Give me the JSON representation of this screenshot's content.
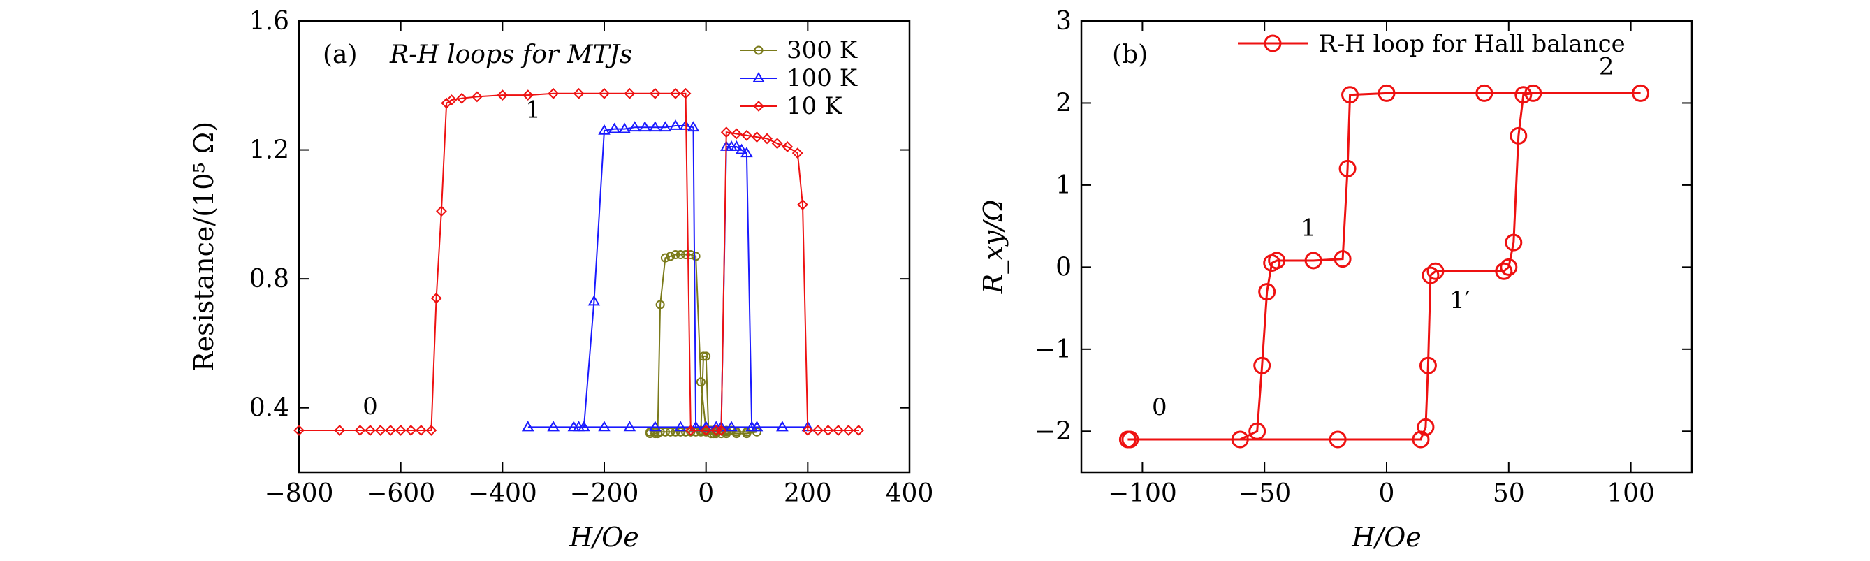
{
  "chart_data": [
    {
      "type": "line",
      "panel": "(a)",
      "title": "R-H loops for MTJs",
      "xlabel": "H/Oe",
      "ylabel": "Resistance/(10⁵ Ω)",
      "xlim": [
        -800,
        400
      ],
      "ylim": [
        0.2,
        1.6
      ],
      "xticks": [
        -800,
        -600,
        -400,
        -200,
        0,
        200,
        400
      ],
      "xtick_labels": [
        "−800",
        "−600",
        "−400",
        "−200",
        "0",
        "200",
        "400"
      ],
      "yticks": [
        0.4,
        0.8,
        1.2,
        1.6
      ],
      "ytick_labels": [
        "0.4",
        "0.8",
        "1.2",
        "1.6"
      ],
      "legend_position": "top-right",
      "annotations": [
        {
          "text": "0",
          "x": -660,
          "y": 0.38
        },
        {
          "text": "1",
          "x": -340,
          "y": 1.3
        }
      ],
      "series": [
        {
          "name": "300 K",
          "color": "#7a7a1a",
          "marker": "circle",
          "x": [
            -110,
            -100,
            -90,
            -80,
            -70,
            -60,
            -50,
            -40,
            -30,
            -20,
            -10,
            0,
            10,
            20,
            30,
            40,
            50,
            -10,
            -5,
            0,
            5,
            10,
            15,
            20,
            30,
            40,
            60,
            80,
            100,
            80,
            60,
            40,
            20,
            10,
            0,
            -10,
            -20,
            -30,
            -40,
            -50,
            -60,
            -70,
            -80,
            -90,
            -95,
            -100,
            -110
          ],
          "y": [
            0.325,
            0.325,
            0.325,
            0.325,
            0.325,
            0.325,
            0.325,
            0.325,
            0.325,
            0.325,
            0.325,
            0.325,
            0.33,
            0.33,
            0.33,
            0.33,
            0.33,
            0.33,
            0.56,
            0.56,
            0.33,
            0.32,
            0.32,
            0.32,
            0.32,
            0.32,
            0.32,
            0.32,
            0.325,
            0.325,
            0.325,
            0.325,
            0.325,
            0.33,
            0.33,
            0.48,
            0.87,
            0.875,
            0.875,
            0.875,
            0.875,
            0.87,
            0.865,
            0.72,
            0.32,
            0.32,
            0.32
          ]
        },
        {
          "name": "100 K",
          "color": "#1a1aff",
          "marker": "triangle",
          "x": [
            -350,
            -300,
            -250,
            -200,
            -150,
            -100,
            -50,
            0,
            50,
            100,
            150,
            200,
            150,
            100,
            90,
            80,
            70,
            60,
            50,
            40,
            30,
            20,
            0,
            -20,
            -25,
            -40,
            -60,
            -80,
            -100,
            -120,
            -140,
            -160,
            -180,
            -200,
            -220,
            -240,
            -260,
            -300,
            -350
          ],
          "y": [
            0.34,
            0.34,
            0.34,
            0.34,
            0.34,
            0.34,
            0.34,
            0.34,
            0.34,
            0.34,
            0.34,
            0.34,
            0.34,
            0.34,
            0.34,
            1.19,
            1.2,
            1.21,
            1.21,
            1.21,
            0.34,
            0.34,
            0.34,
            0.34,
            1.27,
            1.275,
            1.275,
            1.27,
            1.27,
            1.27,
            1.27,
            1.265,
            1.265,
            1.26,
            0.73,
            0.34,
            0.34,
            0.34,
            0.34
          ]
        },
        {
          "name": "10 K",
          "color": "#ee1111",
          "marker": "diamond",
          "x": [
            -800,
            -720,
            -680,
            -660,
            -640,
            -620,
            -600,
            -580,
            -560,
            -540,
            -530,
            -520,
            -510,
            -500,
            -480,
            -450,
            -400,
            -350,
            -300,
            -250,
            -200,
            -150,
            -100,
            -60,
            -40,
            -30,
            0,
            20,
            30,
            40,
            60,
            80,
            100,
            120,
            140,
            160,
            180,
            190,
            200,
            220,
            240,
            260,
            280,
            300
          ],
          "y": [
            0.33,
            0.33,
            0.33,
            0.33,
            0.33,
            0.33,
            0.33,
            0.33,
            0.33,
            0.33,
            0.74,
            1.01,
            1.345,
            1.355,
            1.36,
            1.365,
            1.37,
            1.37,
            1.375,
            1.375,
            1.375,
            1.375,
            1.375,
            1.375,
            1.375,
            0.33,
            0.33,
            0.33,
            0.33,
            1.255,
            1.25,
            1.245,
            1.24,
            1.235,
            1.22,
            1.21,
            1.19,
            1.03,
            0.33,
            0.33,
            0.33,
            0.33,
            0.33,
            0.33
          ]
        }
      ]
    },
    {
      "type": "line",
      "panel": "(b)",
      "title": "",
      "xlabel": "H/Oe",
      "ylabel": "R_xy/Ω",
      "xlim": [
        -125,
        125
      ],
      "ylim": [
        -2.5,
        3
      ],
      "xticks": [
        -100,
        -50,
        0,
        50,
        100
      ],
      "xtick_labels": [
        "−100",
        "−50",
        "0",
        "50",
        "100"
      ],
      "yticks": [
        -2,
        -1,
        0,
        1,
        2,
        3
      ],
      "ytick_labels": [
        "−2",
        "−1",
        "0",
        "1",
        "2",
        "3"
      ],
      "legend_position": "top-right",
      "annotations": [
        {
          "text": "0",
          "x": -93,
          "y": -1.8
        },
        {
          "text": "1",
          "x": -32,
          "y": 0.38
        },
        {
          "text": "1′",
          "x": 30,
          "y": -0.5
        },
        {
          "text": "2",
          "x": 90,
          "y": 2.35
        }
      ],
      "series": [
        {
          "name": "R-H loop for Hall balance",
          "color": "#ee1111",
          "marker": "circle-open",
          "x": [
            -105,
            -60,
            -53,
            -51,
            -49,
            -47,
            -45,
            -30,
            -18,
            -16,
            -15,
            0,
            40,
            104,
            60,
            56,
            54,
            52,
            50,
            48,
            20,
            18,
            17,
            16,
            14,
            -20,
            -106
          ],
          "y": [
            -2.1,
            -2.1,
            -2.0,
            -1.2,
            -0.3,
            0.05,
            0.08,
            0.08,
            0.1,
            1.2,
            2.1,
            2.12,
            2.12,
            2.12,
            2.12,
            2.1,
            1.6,
            0.3,
            0.0,
            -0.05,
            -0.05,
            -0.1,
            -1.2,
            -1.95,
            -2.1,
            -2.1,
            -2.1
          ]
        }
      ]
    }
  ]
}
